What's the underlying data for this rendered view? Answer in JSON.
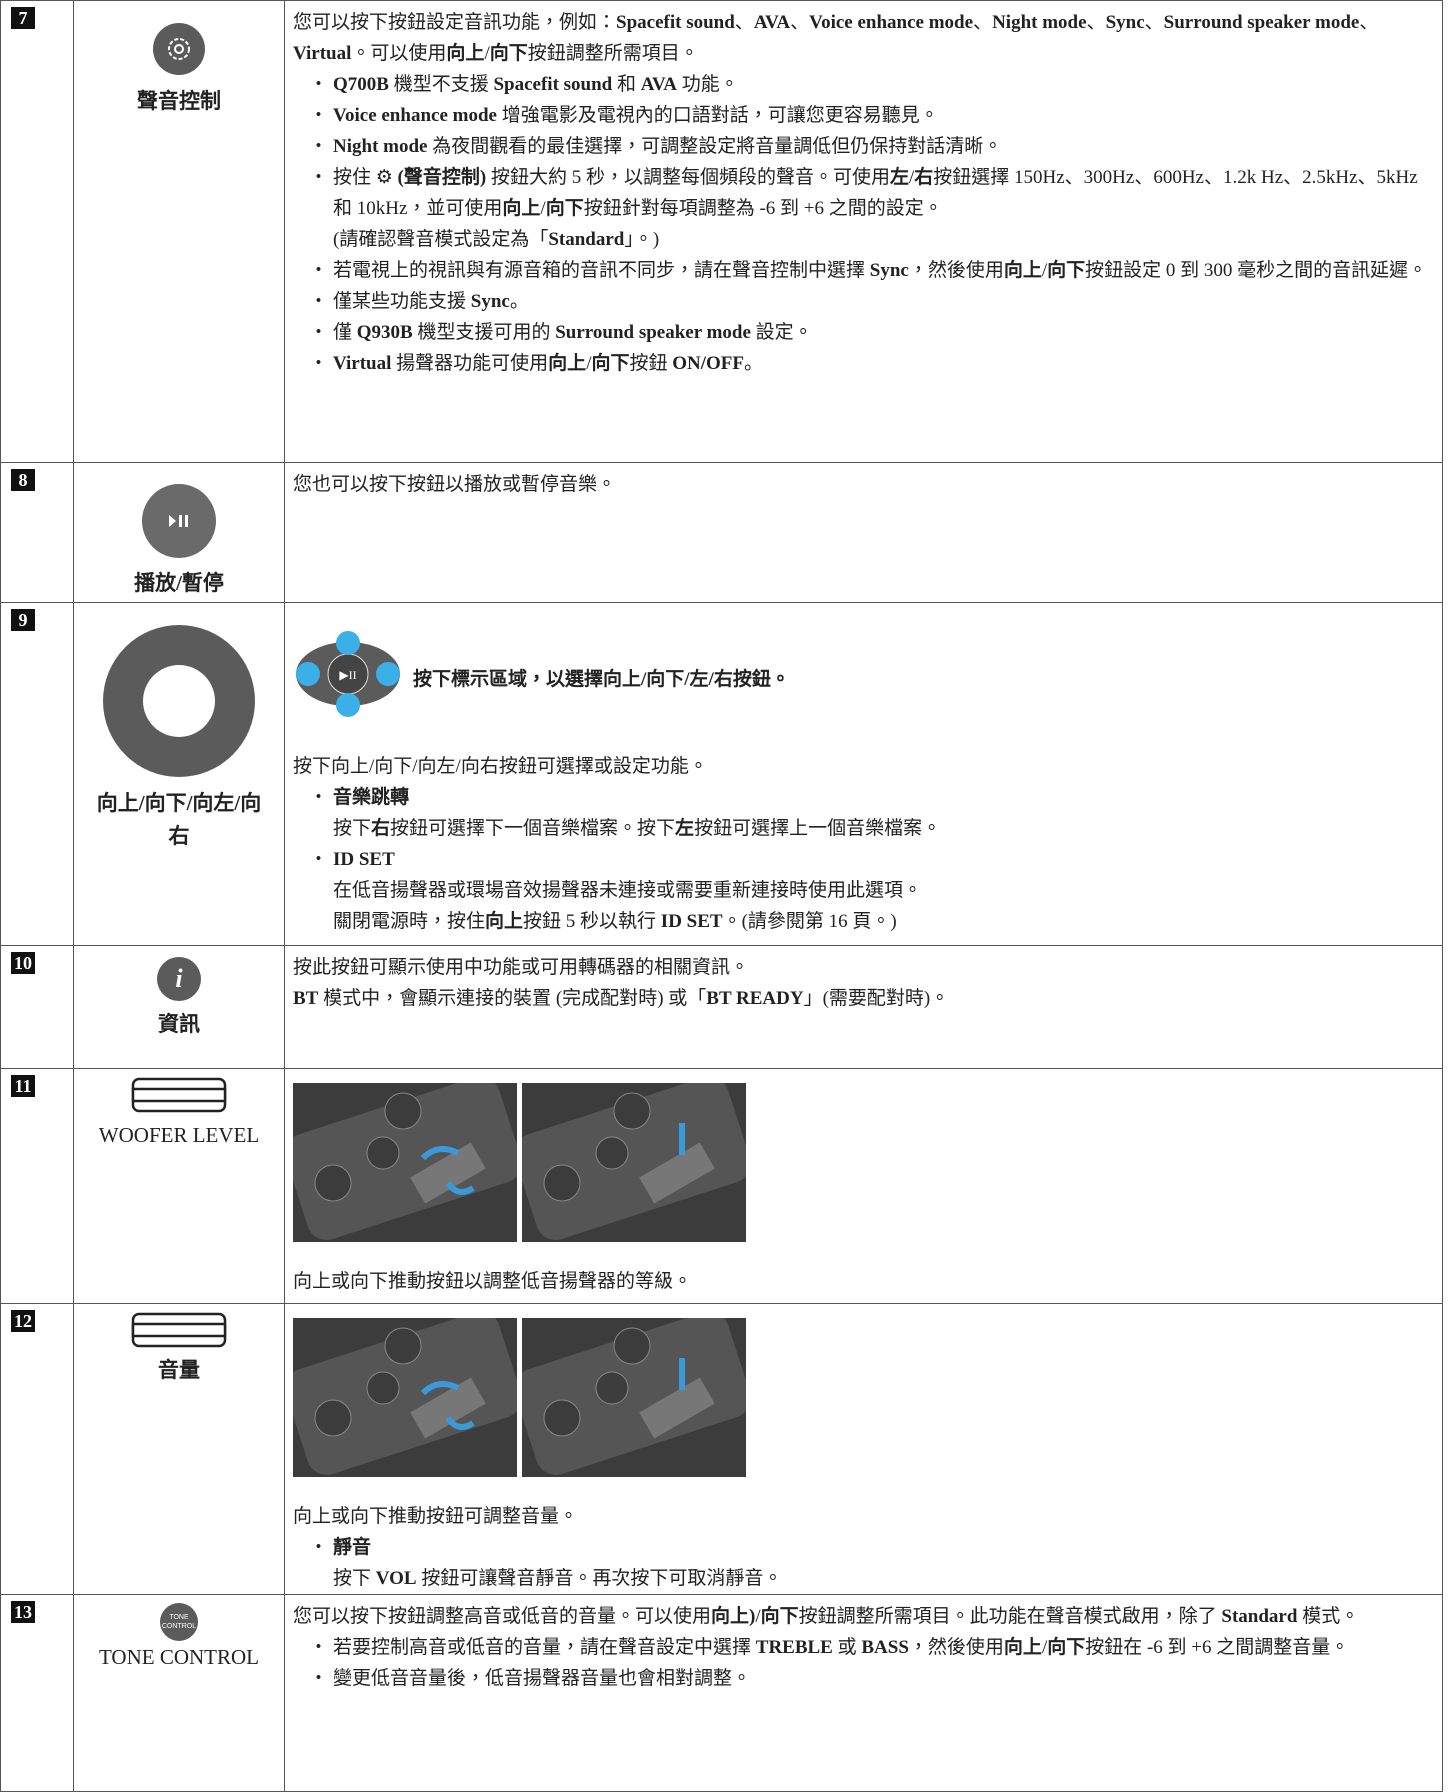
{
  "rows": [
    {
      "num": "7",
      "label": [
        {
          "b": "聲音控制"
        }
      ],
      "content": [
        {
          "p": [
            "您可以按下按鈕設定音訊功能，例如：",
            {
              "b": "Spacefit sound"
            },
            "、",
            {
              "b": "AVA"
            },
            "、",
            {
              "b": "Voice enhance mode"
            },
            "、",
            {
              "b": "Night mode"
            },
            "、",
            {
              "b": "Sync"
            },
            "、",
            {
              "b": "Surround speaker mode"
            },
            "、",
            {
              "b": "Virtual"
            },
            "。可以使用",
            {
              "b": "向上"
            },
            "/",
            {
              "b": "向下"
            },
            "按鈕調整所需項目。"
          ]
        },
        {
          "li": [
            {
              "b": "Q700B"
            },
            " 機型不支援 ",
            {
              "b": "Spacefit sound"
            },
            " 和 ",
            {
              "b": "AVA"
            },
            " 功能。"
          ]
        },
        {
          "li": [
            {
              "b": "Voice enhance mode"
            },
            " 增強電影及電視內的口語對話，可讓您更容易聽見。"
          ]
        },
        {
          "li": [
            {
              "b": "Night mode"
            },
            " 為夜間觀看的最佳選擇，可調整設定將音量調低但仍保持對話清晰。"
          ]
        },
        {
          "li": [
            "按住 ⚙ ",
            {
              "b": "(聲音控制)"
            },
            " 按鈕大約 5 秒，以調整每個頻段的聲音。可使用",
            {
              "b": "左"
            },
            "/",
            {
              "b": "右"
            },
            "按鈕選擇 150Hz、300Hz、600Hz、1.2k Hz、2.5kHz、5kHz 和 10kHz，並可使用",
            {
              "b": "向上"
            },
            "/",
            {
              "b": "向下"
            },
            "按鈕針對每項調整為 -6 到 +6 之間的設定。"
          ],
          "sub": [
            [
              "(請確認聲音模式設定為「",
              {
                "b": "Standard"
              },
              "」。)"
            ]
          ]
        },
        {
          "li": [
            "若電視上的視訊與有源音箱的音訊不同步，請在聲音控制中選擇 ",
            {
              "b": "Sync"
            },
            "，然後使用",
            {
              "b": "向上"
            },
            "/",
            {
              "b": "向下"
            },
            "按鈕設定 0 到 300 毫秒之間的音訊延遲。"
          ]
        },
        {
          "li": [
            "僅某些功能支援 ",
            {
              "b": "Sync"
            },
            "。"
          ]
        },
        {
          "li": [
            "僅 ",
            {
              "b": "Q930B"
            },
            " 機型支援可用的 ",
            {
              "b": "Surround speaker mode"
            },
            " 設定。"
          ]
        },
        {
          "li": [
            {
              "b": "Virtual"
            },
            " 揚聲器功能可使用",
            {
              "b": "向上"
            },
            "/",
            {
              "b": "向下"
            },
            "按鈕 ",
            {
              "b": "ON/OFF"
            },
            "。"
          ]
        }
      ]
    },
    {
      "num": "8",
      "label": [
        {
          "b": "播放/暫停"
        }
      ],
      "content": [
        {
          "p": [
            "您也可以按下按鈕以播放或暫停音樂。"
          ]
        }
      ]
    },
    {
      "num": "9",
      "label": [
        {
          "b": "向上/向下/向左/向右"
        }
      ],
      "figure_caption": [
        {
          "b": "按下標示區域，以選擇向上/向下/左/右按鈕。"
        }
      ],
      "content": [
        {
          "p": [
            "按下向上/向下/向左/向右按鈕可選擇或設定功能。"
          ]
        },
        {
          "li": [
            {
              "b": "音樂跳轉"
            }
          ],
          "sub": [
            [
              "按下",
              {
                "b": "右"
              },
              "按鈕可選擇下一個音樂檔案。按下",
              {
                "b": "左"
              },
              "按鈕可選擇上一個音樂檔案。"
            ]
          ]
        },
        {
          "li": [
            {
              "b": "ID SET"
            }
          ],
          "sub": [
            [
              "在低音揚聲器或環場音效揚聲器未連接或需要重新連接時使用此選項。"
            ],
            [
              "關閉電源時，按住",
              {
                "b": "向上"
              },
              "按鈕 5 秒以執行 ",
              {
                "b": "ID SET"
              },
              "。(請參閱第 16 頁。)"
            ]
          ]
        }
      ]
    },
    {
      "num": "10",
      "label": [
        {
          "b": "資訊"
        }
      ],
      "content": [
        {
          "p": [
            "按此按鈕可顯示使用中功能或可用轉碼器的相關資訊。"
          ]
        },
        {
          "p": [
            {
              "b": "BT"
            },
            " 模式中，會顯示連接的裝置 (完成配對時) 或「",
            {
              "b": "BT READY"
            },
            "」(需要配對時)。"
          ]
        }
      ]
    },
    {
      "num": "11",
      "label": [
        "WOOFER LEVEL"
      ],
      "content": [
        {
          "p": [
            "向上或向下推動按鈕以調整低音揚聲器的等級。"
          ]
        }
      ]
    },
    {
      "num": "12",
      "label": [
        {
          "b": "音量"
        }
      ],
      "content": [
        {
          "p": [
            "向上或向下推動按鈕可調整音量。"
          ]
        },
        {
          "li": [
            {
              "b": "靜音"
            }
          ],
          "sub": [
            [
              "按下 ",
              {
                "b": "VOL"
              },
              " 按鈕可讓聲音靜音。再次按下可取消靜音。"
            ]
          ]
        }
      ]
    },
    {
      "num": "13",
      "icon_text": [
        "TONE",
        "CONTROL"
      ],
      "label": [
        "TONE CONTROL"
      ],
      "content": [
        {
          "p": [
            "您可以按下按鈕調整高音或低音的音量。可以使用",
            {
              "b": "向上)"
            },
            "/",
            {
              "b": "向下"
            },
            "按鈕調整所需項目。此功能在聲音模式啟用，除了 ",
            {
              "b": "Standard"
            },
            " 模式。"
          ]
        },
        {
          "li": [
            "若要控制高音或低音的音量，請在聲音設定中選擇 ",
            {
              "b": "TREBLE"
            },
            " 或 ",
            {
              "b": "BASS"
            },
            "，然後使用",
            {
              "b": "向上"
            },
            "/",
            {
              "b": "向下"
            },
            "按鈕在 -6 到 +6 之間調整音量。"
          ]
        },
        {
          "li": [
            "變更低音音量後，低音揚聲器音量也會相對調整。"
          ]
        }
      ]
    }
  ]
}
